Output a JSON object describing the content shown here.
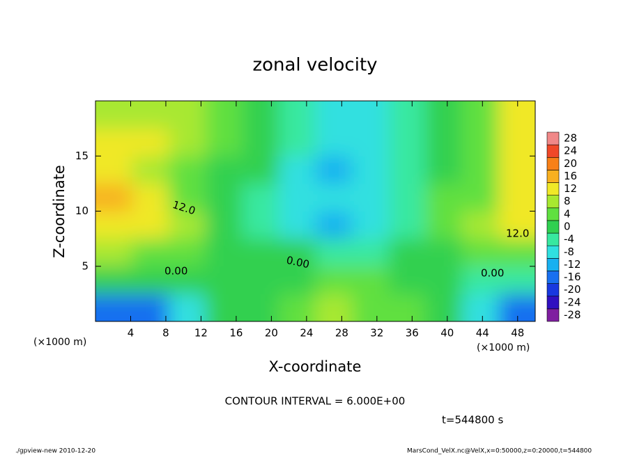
{
  "chart_data": {
    "type": "contour",
    "title": "zonal velocity",
    "x_label": "X-coordinate",
    "y_label": "Z-coordinate",
    "x_unit": "(×1000 m)",
    "y_unit": "(×1000 m)",
    "xlim": [
      0,
      50
    ],
    "ylim": [
      0,
      20
    ],
    "xticks": [
      4,
      8,
      12,
      16,
      20,
      24,
      28,
      32,
      36,
      40,
      44,
      48
    ],
    "yticks": [
      5,
      10,
      15
    ],
    "x": [
      2.08,
      6.25,
      10.42,
      14.58,
      18.75,
      22.92,
      27.08,
      31.25,
      35.42,
      39.58,
      43.75,
      47.92
    ],
    "y": [
      1.25,
      3.75,
      6.25,
      8.75,
      11.25,
      13.75,
      16.25,
      18.75
    ],
    "z": [
      [
        -16,
        -14,
        -6,
        2,
        2,
        6,
        10,
        6,
        4,
        2,
        -8,
        -14
      ],
      [
        2,
        0,
        0,
        0,
        2,
        2,
        4,
        6,
        2,
        0,
        -2,
        -2
      ],
      [
        8,
        6,
        4,
        2,
        2,
        0,
        -4,
        -2,
        2,
        2,
        6,
        6
      ],
      [
        12,
        12,
        10,
        2,
        -2,
        -6,
        -10,
        -8,
        -4,
        4,
        8,
        12
      ],
      [
        16,
        12,
        6,
        2,
        -2,
        -6,
        -8,
        -6,
        -4,
        4,
        6,
        14
      ],
      [
        14,
        10,
        6,
        2,
        0,
        -6,
        -10,
        -6,
        -4,
        2,
        6,
        14
      ],
      [
        12,
        12,
        8,
        4,
        0,
        -4,
        -8,
        -6,
        -4,
        2,
        6,
        12
      ],
      [
        10,
        10,
        8,
        4,
        0,
        -4,
        -6,
        -6,
        -2,
        2,
        6,
        12
      ]
    ],
    "levels": [
      -28,
      -24,
      -20,
      -16,
      -12,
      -8,
      -4,
      0,
      4,
      8,
      12,
      16,
      20,
      24,
      28
    ],
    "level_colors": [
      "#7f1fa0",
      "#3010c0",
      "#1838e0",
      "#1870f0",
      "#18b0f0",
      "#30e0e0",
      "#38e8a0",
      "#30d050",
      "#60e040",
      "#a8e830",
      "#f0e828",
      "#f8b020",
      "#f88018",
      "#f04828",
      "#f08888"
    ],
    "contour_labels": [
      "12.0",
      "12.0",
      "0.00",
      "0.00",
      "0.00"
    ],
    "contour_interval": "CONTOUR INTERVAL = 6.000E+00",
    "time": "t=544800 s",
    "footer_left": "./gpview-new  2010-12-20",
    "footer_right": "MarsCond_VelX.nc@VelX,x=0:50000,z=0:20000,t=544800"
  }
}
